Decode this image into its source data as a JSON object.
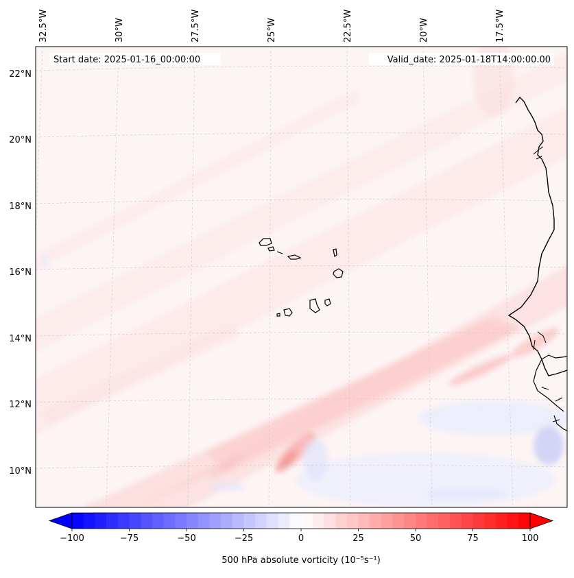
{
  "map": {
    "start_date_label": "Start date: 2025-01-16_00:00:00",
    "valid_date_label": "Valid_date: 2025-01-18T14:00:00.00",
    "lon_labels": [
      "32.5°W",
      "30°W",
      "27.5°W",
      "25°W",
      "22.5°W",
      "20°W",
      "17.5°W"
    ],
    "lat_labels": [
      "22°N",
      "20°N",
      "18°N",
      "16°N",
      "14°N",
      "12°N",
      "10°N"
    ],
    "gridlines": true,
    "field": "500 hPa absolute vorticity",
    "background_color": "#fdf4f4"
  },
  "colorbar": {
    "label": "500 hPa absolute vorticity (10⁻⁵s⁻¹)",
    "ticks": [
      "−100",
      "−75",
      "−50",
      "−25",
      "0",
      "25",
      "50",
      "75",
      "100"
    ],
    "tick_values": [
      -100,
      -75,
      -50,
      -25,
      0,
      25,
      50,
      75,
      100
    ],
    "min": -100,
    "max": 100,
    "neg_color": "#0000ff",
    "zero_color": "#ffffff",
    "pos_color": "#ff0000"
  }
}
